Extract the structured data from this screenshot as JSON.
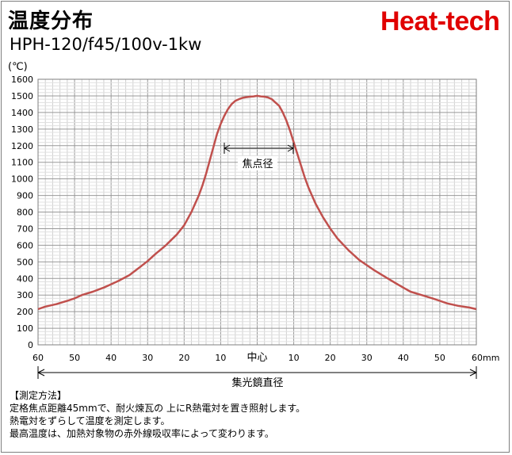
{
  "header": {
    "title": "温度分布",
    "subtitle": "HPH-120/f45/100v-1kw",
    "brand": "Heat-tech",
    "unit_label": "(℃)"
  },
  "chart_data": {
    "type": "line",
    "ylim": [
      0,
      1600
    ],
    "y_ticks": [
      0,
      100,
      200,
      300,
      400,
      500,
      600,
      700,
      800,
      900,
      1000,
      1100,
      1200,
      1300,
      1400,
      1500,
      1600
    ],
    "x_tick_labels": [
      "60",
      "50",
      "40",
      "30",
      "20",
      "10",
      "中心",
      "10",
      "20",
      "30",
      "40",
      "50",
      "60mm"
    ],
    "grid": true,
    "series": [
      {
        "color": "#c0504d",
        "x": [
          -60,
          -58,
          -55,
          -52,
          -50,
          -48,
          -45,
          -42,
          -40,
          -38,
          -35,
          -32,
          -30,
          -28,
          -25,
          -22,
          -20,
          -18,
          -16,
          -15,
          -14,
          -13,
          -12,
          -11,
          -10,
          -9,
          -8,
          -7,
          -6,
          -5,
          -4,
          -3,
          -2,
          -1,
          0,
          1,
          2,
          3,
          4,
          5,
          6,
          7,
          8,
          9,
          10,
          11,
          12,
          13,
          14,
          15,
          16,
          18,
          20,
          22,
          25,
          28,
          30,
          32,
          35,
          38,
          40,
          42,
          45,
          48,
          50,
          52,
          55,
          58,
          60
        ],
        "y": [
          215,
          230,
          245,
          265,
          280,
          300,
          320,
          345,
          365,
          385,
          420,
          470,
          505,
          545,
          600,
          665,
          720,
          800,
          900,
          960,
          1030,
          1110,
          1190,
          1270,
          1330,
          1380,
          1420,
          1450,
          1470,
          1480,
          1488,
          1492,
          1495,
          1497,
          1500,
          1497,
          1495,
          1490,
          1480,
          1460,
          1440,
          1400,
          1350,
          1290,
          1220,
          1150,
          1080,
          1010,
          950,
          900,
          850,
          770,
          700,
          640,
          570,
          510,
          480,
          450,
          410,
          370,
          345,
          320,
          300,
          280,
          265,
          250,
          235,
          225,
          215
        ]
      }
    ],
    "annotations": {
      "focal_diameter": "焦点径",
      "mirror_diameter": "集光鏡直径"
    }
  },
  "notes": {
    "heading": "【測定方法】",
    "lines": [
      "定格焦点距離45mmで、耐火煉瓦の 上にR熱電対を置き照射します。",
      "熱電対をずらして温度を測定します。",
      "最高温度は、加熱対象物の赤外線吸収率によって変わります。"
    ]
  }
}
